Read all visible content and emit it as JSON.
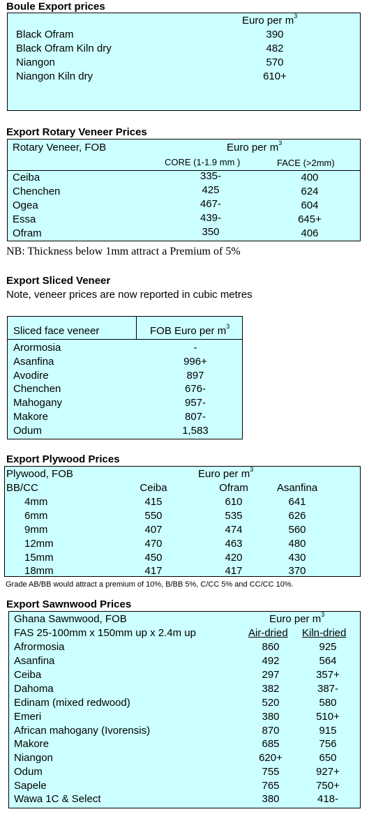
{
  "boule": {
    "title": "Boule Export prices",
    "unit": "Euro per m",
    "rows": [
      {
        "name": "Black Ofram",
        "value": "390"
      },
      {
        "name": "Black Ofram  Kiln dry",
        "value": "482"
      },
      {
        "name": "Niangon",
        "value": "570"
      },
      {
        "name": "Niangon Kiln dry",
        "value": "610+"
      }
    ]
  },
  "rotary": {
    "title": "Export Rotary Veneer Prices",
    "label": "Rotary Veneer,  FOB",
    "unit": "Euro  per m",
    "col1": "CORE (1-1.9 mm )",
    "col2": "FACE (>2mm)",
    "rows": [
      {
        "name": "Ceiba",
        "core": "335-",
        "face": "400"
      },
      {
        "name": "Chenchen",
        "core": "425",
        "face": "624"
      },
      {
        "name": "Ogea",
        "core": "467-",
        "face": "604"
      },
      {
        "name": "Essa",
        "core": "439-",
        "face": "645+"
      },
      {
        "name": "Ofram",
        "core": "350",
        "face": "406"
      }
    ],
    "note": "NB: Thickness below 1mm attract a Premium of 5%"
  },
  "sliced": {
    "title": "Export Sliced Veneer",
    "note": "Note, veneer prices are now reported in cubic metres",
    "col_label": "Sliced face veneer",
    "col_unit": "FOB Euro per m",
    "rows": [
      {
        "name": "Arormosia",
        "value": "-"
      },
      {
        "name": "Asanfina",
        "value": "996+"
      },
      {
        "name": "Avodire",
        "value": "897"
      },
      {
        "name": "Chenchen",
        "value": "676-"
      },
      {
        "name": "Mahogany",
        "value": "957-"
      },
      {
        "name": "Makore",
        "value": "807-"
      },
      {
        "name": "Odum",
        "value": "1,583"
      }
    ]
  },
  "plywood": {
    "title": "Export Plywood Prices",
    "label": "Plywood, FOB",
    "unit": "Euro per m",
    "grade": "BB/CC",
    "cols": [
      "Ceiba",
      "Ofram",
      "Asanfina"
    ],
    "rows": [
      {
        "size": "4mm",
        "v": [
          "415",
          "610",
          "641"
        ]
      },
      {
        "size": "6mm",
        "v": [
          "550",
          "535",
          "626"
        ]
      },
      {
        "size": "9mm",
        "v": [
          "407",
          "474",
          "560"
        ]
      },
      {
        "size": "12mm",
        "v": [
          "470",
          "463",
          "480"
        ]
      },
      {
        "size": "15mm",
        "v": [
          "450",
          "420",
          "430"
        ]
      },
      {
        "size": "18mm",
        "v": [
          "417",
          "417",
          "370"
        ]
      }
    ],
    "note": "Grade AB/BB would attract a premium of 10%, B/BB 5%, C/CC 5% and CC/CC 10%."
  },
  "sawn": {
    "title": "Export Sawnwood Prices",
    "label": "Ghana Sawnwood, FOB",
    "unit": "Euro per m",
    "spec": "FAS 25-100mm x 150mm up x 2.4m up",
    "col1": "Air-dried",
    "col2": "Kiln-dried",
    "rows": [
      {
        "name": "Afrormosia",
        "air": "860",
        "kiln": "925"
      },
      {
        "name": "Asanfina",
        "air": "492",
        "kiln": "564"
      },
      {
        "name": "Ceiba",
        "air": "297",
        "kiln": "357+"
      },
      {
        "name": "Dahoma",
        "air": "382",
        "kiln": "387-"
      },
      {
        "name": "Edinam (mixed redwood)",
        "air": "520",
        "kiln": "580"
      },
      {
        "name": "Emeri",
        "air": "380",
        "kiln": "510+"
      },
      {
        "name": "African mahogany (Ivorensis)",
        "air": "870",
        "kiln": "915"
      },
      {
        "name": "Makore",
        "air": "685",
        "kiln": "756"
      },
      {
        "name": "Niangon",
        "air": "620+",
        "kiln": "650"
      },
      {
        "name": "Odum",
        "air": "755",
        "kiln": "927+"
      },
      {
        "name": "Sapele",
        "air": "765",
        "kiln": "750+"
      },
      {
        "name": "Wawa 1C & Select",
        "air": "380",
        "kiln": "418-"
      }
    ]
  },
  "superscript": "3",
  "colors": {
    "table_bg": "#ccffff",
    "border": "#000000"
  }
}
